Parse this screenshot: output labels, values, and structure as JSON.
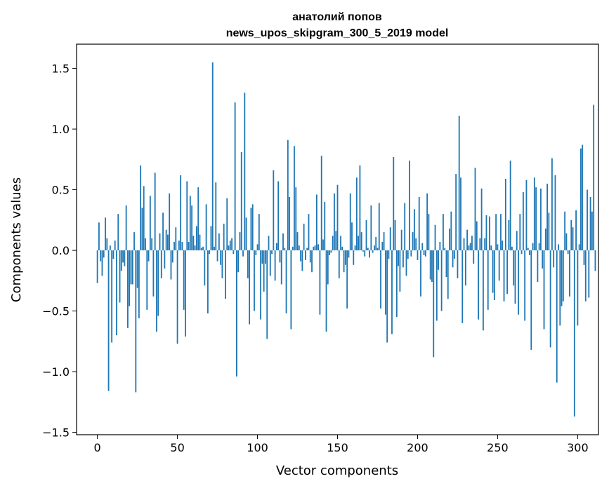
{
  "chart_data": {
    "type": "bar",
    "title": "анатолий попов",
    "subtitle": "news_upos_skipgram_300_5_2019 model",
    "xlabel": "Vector components",
    "ylabel": "Components values",
    "xlim": [
      -13,
      313
    ],
    "ylim": [
      -1.52,
      1.7
    ],
    "xticks": [
      0,
      50,
      100,
      150,
      200,
      250,
      300
    ],
    "yticks": [
      -1.5,
      -1.0,
      -0.5,
      0.0,
      0.5,
      1.0,
      1.5
    ],
    "ytick_labels": [
      "−1.5",
      "−1.0",
      "−0.5",
      "0.0",
      "0.5",
      "1.0",
      "1.5"
    ],
    "bar_color": "#1f77b4",
    "grid": false,
    "values": [
      -0.27,
      0.23,
      -0.09,
      -0.21,
      -0.06,
      0.27,
      0.1,
      -1.16,
      0.04,
      -0.76,
      -0.07,
      0.08,
      -0.7,
      0.3,
      -0.43,
      -0.17,
      -0.1,
      -0.13,
      0.37,
      -0.64,
      -0.46,
      -0.28,
      -0.28,
      0.15,
      -1.17,
      -0.31,
      -0.56,
      0.7,
      0.35,
      0.53,
      0.1,
      -0.49,
      -0.09,
      0.45,
      0.1,
      -0.38,
      0.64,
      -0.67,
      -0.54,
      0.14,
      -0.23,
      0.31,
      -0.15,
      0.17,
      0.13,
      0.47,
      -0.24,
      -0.1,
      0.07,
      0.19,
      -0.77,
      0.08,
      0.62,
      0.07,
      -0.49,
      -0.71,
      0.57,
      0.07,
      0.45,
      0.37,
      0.12,
      0.04,
      0.2,
      0.52,
      0.13,
      0.02,
      0.03,
      -0.29,
      0.38,
      -0.52,
      -0.03,
      0.2,
      1.55,
      0.03,
      0.56,
      -0.09,
      0.14,
      -0.12,
      -0.23,
      0.22,
      -0.4,
      0.43,
      0.04,
      0.08,
      0.1,
      -0.03,
      1.22,
      -1.04,
      -0.18,
      0.15,
      0.81,
      -0.05,
      1.3,
      0.27,
      -0.23,
      -0.61,
      0.35,
      0.38,
      -0.5,
      -0.04,
      0.05,
      0.3,
      -0.57,
      -0.11,
      -0.34,
      -0.11,
      -0.73,
      0.12,
      -0.21,
      -0.03,
      0.66,
      -0.25,
      0.06,
      0.57,
      -0.1,
      -0.28,
      0.14,
      0.02,
      -0.52,
      0.91,
      0.44,
      -0.65,
      0.03,
      0.86,
      0.52,
      0.15,
      0.04,
      -0.09,
      -0.17,
      0.22,
      -0.08,
      0.02,
      0.3,
      -0.1,
      -0.18,
      0.03,
      0.04,
      0.46,
      0.05,
      -0.53,
      0.78,
      0.09,
      0.4,
      -0.67,
      -0.28,
      -0.04,
      -0.02,
      0.12,
      0.47,
      0.16,
      0.54,
      -0.23,
      0.12,
      0.03,
      -0.18,
      -0.12,
      -0.48,
      -0.06,
      0.47,
      0.23,
      -0.12,
      0.04,
      0.6,
      0.12,
      0.7,
      0.15,
      -0.01,
      -0.05,
      0.25,
      0.02,
      -0.06,
      0.37,
      -0.02,
      0.04,
      0.11,
      0.02,
      0.39,
      -0.48,
      0.07,
      0.15,
      -0.53,
      -0.76,
      -0.07,
      0.19,
      -0.69,
      0.77,
      0.25,
      -0.55,
      -0.13,
      -0.34,
      0.17,
      -0.14,
      0.39,
      -0.21,
      -0.07,
      0.74,
      -0.05,
      0.15,
      0.34,
      0.1,
      -0.08,
      0.44,
      -0.38,
      0.06,
      -0.04,
      -0.05,
      0.47,
      0.3,
      -0.24,
      -0.26,
      -0.88,
      0.21,
      -0.58,
      -0.16,
      0.07,
      -0.5,
      0.3,
      0.02,
      -0.22,
      -0.4,
      0.18,
      0.32,
      -0.14,
      -0.07,
      0.63,
      -0.23,
      1.11,
      0.6,
      -0.6,
      0.1,
      -0.29,
      0.17,
      0.04,
      0.06,
      0.12,
      -0.11,
      0.68,
      0.24,
      -0.57,
      0.1,
      0.51,
      -0.66,
      0.1,
      0.29,
      -0.49,
      0.28,
      0.04,
      -0.35,
      -0.41,
      0.3,
      0.05,
      -0.25,
      0.3,
      0.08,
      -0.42,
      0.59,
      -0.36,
      0.25,
      0.74,
      0.03,
      -0.29,
      -0.44,
      0.16,
      -0.53,
      0.3,
      -0.03,
      0.48,
      -0.58,
      0.58,
      0.02,
      -0.04,
      -0.82,
      0.06,
      0.6,
      0.52,
      -0.26,
      0.06,
      0.51,
      -0.15,
      -0.65,
      0.18,
      0.55,
      0.31,
      -0.8,
      0.76,
      -0.14,
      0.62,
      -1.09,
      0.05,
      -0.62,
      -0.46,
      -0.42,
      0.32,
      0.14,
      -0.03,
      -0.38,
      0.25,
      0.19,
      -1.37,
      0.33,
      -0.62,
      0.05,
      0.84,
      0.87,
      -0.12,
      -0.42,
      0.5,
      -0.39,
      0.44,
      0.32,
      1.2,
      -0.17
    ]
  }
}
